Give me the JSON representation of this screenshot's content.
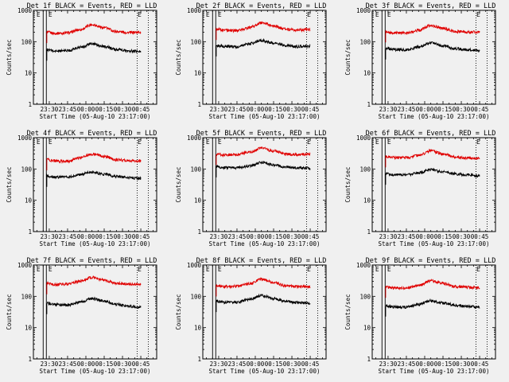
{
  "figure": {
    "background": "#f0f0f0",
    "event_color": "#000000",
    "lld_color": "#e00000"
  },
  "chart_data": [
    {
      "type": "line",
      "title": "Det 1f BLACK = Events, RED = LLD",
      "xlabel": "Start Time (05-Aug-10 23:17:00)",
      "ylabel": "Counts/sec",
      "xlim": [
        "23:17",
        "00:58"
      ],
      "ylim": [
        1,
        1000
      ],
      "yscale": "log",
      "x_ticks": [
        "23:30",
        "23:45",
        "00:00",
        "00:15",
        "00:30",
        "00:45"
      ],
      "y_ticks": [
        "1",
        "10",
        "100",
        "1000"
      ],
      "markers": [
        {
          "label": "E",
          "x": "23:25"
        },
        {
          "label": "E",
          "x": "00:42"
        }
      ],
      "series": [
        {
          "x": [
            "23:28",
            "23:35",
            "23:45",
            "23:55",
            "00:05",
            "00:15",
            "00:25",
            "00:35",
            "00:45"
          ],
          "values": [
            200,
            185,
            190,
            240,
            350,
            280,
            210,
            195,
            200
          ]
        },
        {
          "x": [
            "23:28",
            "23:35",
            "23:45",
            "23:55",
            "00:05",
            "00:15",
            "00:25",
            "00:35",
            "00:45"
          ],
          "values": [
            55,
            50,
            52,
            65,
            85,
            70,
            56,
            50,
            48
          ]
        }
      ]
    },
    {
      "type": "line",
      "title": "Det 2f BLACK = Events, RED = LLD",
      "xlabel": "Start Time (05-Aug-10 23:17:00)",
      "ylabel": "Counts/sec",
      "xlim": [
        "23:17",
        "00:58"
      ],
      "ylim": [
        1,
        1000
      ],
      "yscale": "log",
      "x_ticks": [
        "23:30",
        "23:45",
        "00:00",
        "00:15",
        "00:30",
        "00:45"
      ],
      "y_ticks": [
        "1",
        "10",
        "100",
        "1000"
      ],
      "markers": [
        {
          "label": "E",
          "x": "23:25"
        },
        {
          "label": "E",
          "x": "00:42"
        }
      ],
      "series": [
        {
          "x": [
            "23:28",
            "23:35",
            "23:45",
            "23:55",
            "00:05",
            "00:15",
            "00:25",
            "00:35",
            "00:45"
          ],
          "values": [
            250,
            230,
            225,
            280,
            400,
            320,
            250,
            235,
            240
          ]
        },
        {
          "x": [
            "23:28",
            "23:35",
            "23:45",
            "23:55",
            "00:05",
            "00:15",
            "00:25",
            "00:35",
            "00:45"
          ],
          "values": [
            75,
            70,
            68,
            85,
            110,
            90,
            75,
            70,
            72
          ]
        }
      ]
    },
    {
      "type": "line",
      "title": "Det 3f BLACK = Events, RED = LLD",
      "xlabel": "Start Time (05-Aug-10 23:17:00)",
      "ylabel": "Counts/sec",
      "xlim": [
        "23:17",
        "00:58"
      ],
      "ylim": [
        1,
        1000
      ],
      "yscale": "log",
      "x_ticks": [
        "23:30",
        "23:45",
        "00:00",
        "00:15",
        "00:30",
        "00:45"
      ],
      "y_ticks": [
        "1",
        "10",
        "100",
        "1000"
      ],
      "markers": [
        {
          "label": "E",
          "x": "23:25"
        },
        {
          "label": "E",
          "x": "00:42"
        }
      ],
      "series": [
        {
          "x": [
            "23:28",
            "23:35",
            "23:45",
            "23:55",
            "00:05",
            "00:15",
            "00:25",
            "00:35",
            "00:45"
          ],
          "values": [
            210,
            190,
            185,
            230,
            330,
            270,
            210,
            200,
            205
          ]
        },
        {
          "x": [
            "23:28",
            "23:35",
            "23:45",
            "23:55",
            "00:05",
            "00:15",
            "00:25",
            "00:35",
            "00:45"
          ],
          "values": [
            60,
            56,
            55,
            68,
            90,
            75,
            60,
            55,
            52
          ]
        }
      ]
    },
    {
      "type": "line",
      "title": "Det 4f BLACK = Events, RED = LLD",
      "xlabel": "Start Time (05-Aug-10 23:17:00)",
      "ylabel": "Counts/sec",
      "xlim": [
        "23:17",
        "00:58"
      ],
      "ylim": [
        1,
        1000
      ],
      "yscale": "log",
      "x_ticks": [
        "23:30",
        "23:45",
        "00:00",
        "00:15",
        "00:30",
        "00:45"
      ],
      "y_ticks": [
        "1",
        "10",
        "100",
        "1000"
      ],
      "markers": [
        {
          "label": "E",
          "x": "23:25"
        },
        {
          "label": "E",
          "x": "00:42"
        }
      ],
      "series": [
        {
          "x": [
            "23:28",
            "23:35",
            "23:45",
            "23:55",
            "00:05",
            "00:15",
            "00:25",
            "00:35",
            "00:45"
          ],
          "values": [
            200,
            180,
            175,
            230,
            300,
            250,
            195,
            185,
            180
          ]
        },
        {
          "x": [
            "23:28",
            "23:35",
            "23:45",
            "23:55",
            "00:05",
            "00:15",
            "00:25",
            "00:35",
            "00:45"
          ],
          "values": [
            60,
            55,
            55,
            65,
            80,
            68,
            58,
            52,
            50
          ]
        }
      ]
    },
    {
      "type": "line",
      "title": "Det 5f BLACK = Events, RED = LLD",
      "xlabel": "Start Time (05-Aug-10 23:17:00)",
      "ylabel": "Counts/sec",
      "xlim": [
        "23:17",
        "00:58"
      ],
      "ylim": [
        1,
        1000
      ],
      "yscale": "log",
      "x_ticks": [
        "23:30",
        "23:45",
        "00:00",
        "00:15",
        "00:30",
        "00:45"
      ],
      "y_ticks": [
        "1",
        "10",
        "100",
        "1000"
      ],
      "markers": [
        {
          "label": "E",
          "x": "23:25"
        },
        {
          "label": "E",
          "x": "00:42"
        }
      ],
      "series": [
        {
          "x": [
            "23:28",
            "23:35",
            "23:45",
            "23:55",
            "00:05",
            "00:15",
            "00:25",
            "00:35",
            "00:45"
          ],
          "values": [
            300,
            280,
            290,
            340,
            460,
            380,
            300,
            285,
            290
          ]
        },
        {
          "x": [
            "23:28",
            "23:35",
            "23:45",
            "23:55",
            "00:05",
            "00:15",
            "00:25",
            "00:35",
            "00:45"
          ],
          "values": [
            120,
            110,
            110,
            125,
            160,
            135,
            115,
            108,
            105
          ]
        }
      ]
    },
    {
      "type": "line",
      "title": "Det 6f BLACK = Events, RED = LLD",
      "xlabel": "Start Time (05-Aug-10 23:17:00)",
      "ylabel": "Counts/sec",
      "xlim": [
        "23:17",
        "00:58"
      ],
      "ylim": [
        1,
        1000
      ],
      "yscale": "log",
      "x_ticks": [
        "23:30",
        "23:45",
        "00:00",
        "00:15",
        "00:30",
        "00:45"
      ],
      "y_ticks": [
        "1",
        "10",
        "100",
        "1000"
      ],
      "markers": [
        {
          "label": "E",
          "x": "23:25"
        },
        {
          "label": "E",
          "x": "00:42"
        }
      ],
      "series": [
        {
          "x": [
            "23:28",
            "23:35",
            "23:45",
            "23:55",
            "00:05",
            "00:15",
            "00:25",
            "00:35",
            "00:45"
          ],
          "values": [
            250,
            230,
            230,
            270,
            380,
            300,
            240,
            225,
            215
          ]
        },
        {
          "x": [
            "23:28",
            "23:35",
            "23:45",
            "23:55",
            "00:05",
            "00:15",
            "00:25",
            "00:35",
            "00:45"
          ],
          "values": [
            70,
            65,
            65,
            75,
            95,
            80,
            70,
            65,
            60
          ]
        }
      ]
    },
    {
      "type": "line",
      "title": "Det 7f BLACK = Events, RED = LLD",
      "xlabel": "Start Time (05-Aug-10 23:17:00)",
      "ylabel": "Counts/sec",
      "xlim": [
        "23:17",
        "00:58"
      ],
      "ylim": [
        1,
        1000
      ],
      "yscale": "log",
      "x_ticks": [
        "23:30",
        "23:45",
        "00:00",
        "00:15",
        "00:30",
        "00:45"
      ],
      "y_ticks": [
        "1",
        "10",
        "100",
        "1000"
      ],
      "markers": [
        {
          "label": "E",
          "x": "23:25"
        },
        {
          "label": "E",
          "x": "00:42"
        }
      ],
      "series": [
        {
          "x": [
            "23:28",
            "23:35",
            "23:45",
            "23:55",
            "00:05",
            "00:15",
            "00:25",
            "00:35",
            "00:45"
          ],
          "values": [
            260,
            240,
            245,
            300,
            400,
            330,
            260,
            245,
            240
          ]
        },
        {
          "x": [
            "23:28",
            "23:35",
            "23:45",
            "23:55",
            "00:05",
            "00:15",
            "00:25",
            "00:35",
            "00:45"
          ],
          "values": [
            60,
            55,
            52,
            65,
            85,
            70,
            55,
            48,
            45
          ]
        }
      ]
    },
    {
      "type": "line",
      "title": "Det 8f BLACK = Events, RED = LLD",
      "xlabel": "Start Time (05-Aug-10 23:17:00)",
      "ylabel": "Counts/sec",
      "xlim": [
        "23:17",
        "00:58"
      ],
      "ylim": [
        1,
        1000
      ],
      "yscale": "log",
      "x_ticks": [
        "23:30",
        "23:45",
        "00:00",
        "00:15",
        "00:30",
        "00:45"
      ],
      "y_ticks": [
        "1",
        "10",
        "100",
        "1000"
      ],
      "markers": [
        {
          "label": "E",
          "x": "23:25"
        },
        {
          "label": "E",
          "x": "00:42"
        }
      ],
      "series": [
        {
          "x": [
            "23:28",
            "23:35",
            "23:45",
            "23:55",
            "00:05",
            "00:15",
            "00:25",
            "00:35",
            "00:45"
          ],
          "values": [
            220,
            205,
            210,
            250,
            350,
            280,
            215,
            205,
            200
          ]
        },
        {
          "x": [
            "23:28",
            "23:35",
            "23:45",
            "23:55",
            "00:05",
            "00:15",
            "00:25",
            "00:35",
            "00:45"
          ],
          "values": [
            70,
            65,
            65,
            80,
            105,
            85,
            70,
            62,
            60
          ]
        }
      ]
    },
    {
      "type": "line",
      "title": "Det 9f BLACK = Events, RED = LLD",
      "xlabel": "Start Time (05-Aug-10 23:17:00)",
      "ylabel": "Counts/sec",
      "xlim": [
        "23:17",
        "00:58"
      ],
      "ylim": [
        1,
        1000
      ],
      "yscale": "log",
      "x_ticks": [
        "23:30",
        "23:45",
        "00:00",
        "00:15",
        "00:30",
        "00:45"
      ],
      "y_ticks": [
        "1",
        "10",
        "100",
        "1000"
      ],
      "markers": [
        {
          "label": "E",
          "x": "23:25"
        },
        {
          "label": "E",
          "x": "00:42"
        }
      ],
      "series": [
        {
          "x": [
            "23:28",
            "23:35",
            "23:45",
            "23:55",
            "00:05",
            "00:15",
            "00:25",
            "00:35",
            "00:45"
          ],
          "values": [
            200,
            185,
            180,
            220,
            310,
            260,
            205,
            195,
            190
          ]
        },
        {
          "x": [
            "23:28",
            "23:35",
            "23:45",
            "23:55",
            "00:05",
            "00:15",
            "00:25",
            "00:35",
            "00:45"
          ],
          "values": [
            50,
            46,
            45,
            55,
            72,
            62,
            52,
            48,
            45
          ]
        }
      ]
    }
  ]
}
